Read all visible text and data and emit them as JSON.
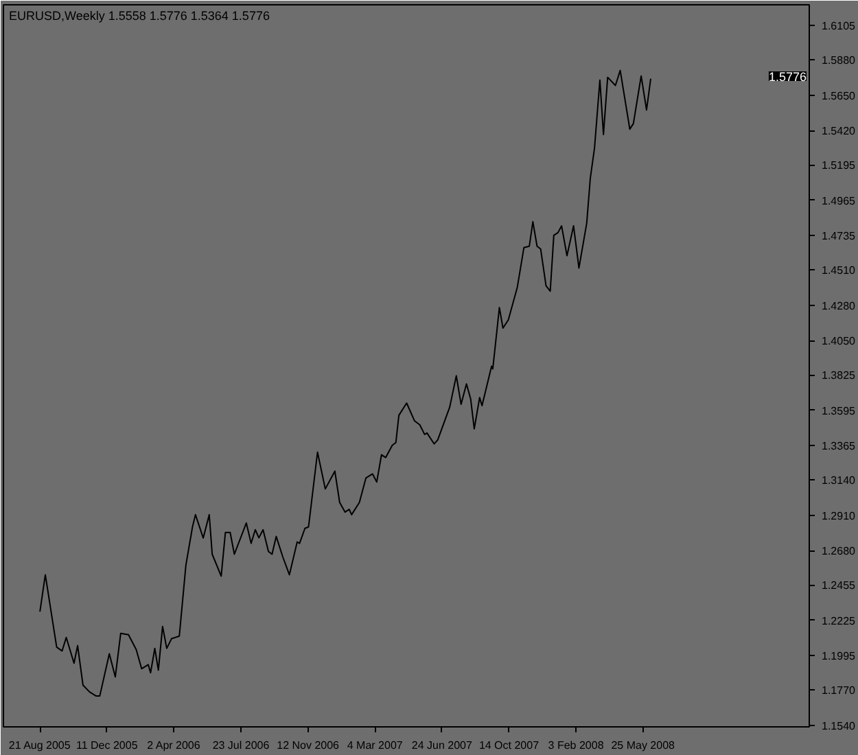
{
  "chart_data": {
    "type": "line",
    "title": "EURUSD,Weekly  1.5558 1.5776 1.5364 1.5776",
    "x": [
      "2005-08-21",
      "2005-08-30",
      "2005-09-18",
      "2005-09-27",
      "2005-10-04",
      "2005-10-17",
      "2005-10-23",
      "2005-11-01",
      "2005-11-12",
      "2005-11-23",
      "2005-11-29",
      "2005-12-15",
      "2005-12-25",
      "2006-01-03",
      "2006-01-16",
      "2006-01-29",
      "2006-02-07",
      "2006-02-18",
      "2006-02-22",
      "2006-03-01",
      "2006-03-07",
      "2006-03-14",
      "2006-03-21",
      "2006-03-29",
      "2006-04-11",
      "2006-04-22",
      "2006-05-03",
      "2006-05-08",
      "2006-05-21",
      "2006-05-31",
      "2006-06-05",
      "2006-06-20",
      "2006-06-27",
      "2006-07-05",
      "2006-07-12",
      "2006-08-01",
      "2006-08-09",
      "2006-08-16",
      "2006-08-22",
      "2006-08-29",
      "2006-09-07",
      "2006-09-13",
      "2006-09-20",
      "2006-10-01",
      "2006-10-12",
      "2006-10-25",
      "2006-10-29",
      "2006-11-07",
      "2006-11-13",
      "2006-11-28",
      "2006-12-11",
      "2006-12-27",
      "2007-01-04",
      "2007-01-13",
      "2007-01-20",
      "2007-01-24",
      "2007-02-06",
      "2007-02-17",
      "2007-02-28",
      "2007-03-07",
      "2007-03-15",
      "2007-03-22",
      "2007-04-02",
      "2007-04-08",
      "2007-04-13",
      "2007-04-26",
      "2007-05-09",
      "2007-05-18",
      "2007-05-26",
      "2007-05-30",
      "2007-06-11",
      "2007-06-17",
      "2007-07-07",
      "2007-07-18",
      "2007-07-26",
      "2007-08-04",
      "2007-08-11",
      "2007-08-17",
      "2007-08-26",
      "2007-08-30",
      "2007-09-15",
      "2007-09-17",
      "2007-09-28",
      "2007-10-04",
      "2007-10-13",
      "2007-10-28",
      "2007-11-08",
      "2007-11-17",
      "2007-11-23",
      "2007-11-30",
      "2007-12-06",
      "2007-12-15",
      "2007-12-22",
      "2007-12-28",
      "2008-01-04",
      "2008-01-10",
      "2008-01-19",
      "2008-01-30",
      "2008-02-08",
      "2008-02-21",
      "2008-02-27",
      "2008-03-05",
      "2008-03-14",
      "2008-03-20",
      "2008-03-27",
      "2008-04-09",
      "2008-04-17",
      "2008-05-03",
      "2008-05-09",
      "2008-05-22",
      "2008-05-31",
      "2008-06-07"
    ],
    "series": [
      {
        "color": "#000000",
        "values": [
          1.2282,
          1.2522,
          1.205,
          1.2025,
          1.2113,
          1.1945,
          1.206,
          1.1802,
          1.1758,
          1.1731,
          1.1731,
          1.2007,
          1.1856,
          1.214,
          1.2131,
          1.2034,
          1.1909,
          1.1936,
          1.1883,
          1.2042,
          1.19,
          1.2185,
          1.2042,
          1.2105,
          1.2122,
          1.2585,
          1.2834,
          1.2914,
          1.2762,
          1.2914,
          1.2656,
          1.2513,
          1.2798,
          1.2798,
          1.2656,
          1.286,
          1.2727,
          1.2816,
          1.2763,
          1.2816,
          1.2674,
          1.2656,
          1.2772,
          1.2638,
          1.2522,
          1.2736,
          1.2727,
          1.2825,
          1.2834,
          1.3322,
          1.3082,
          1.3198,
          1.2994,
          1.2931,
          1.2949,
          1.2914,
          1.2994,
          1.3154,
          1.318,
          1.3127,
          1.3305,
          1.3287,
          1.3367,
          1.3385,
          1.3562,
          1.3642,
          1.3527,
          1.35,
          1.3438,
          1.3447,
          1.3376,
          1.3402,
          1.3616,
          1.382,
          1.3634,
          1.3767,
          1.3669,
          1.3474,
          1.3678,
          1.3625,
          1.3883,
          1.3865,
          1.4265,
          1.4131,
          1.4185,
          1.4398,
          1.4656,
          1.4665,
          1.4825,
          1.4665,
          1.4647,
          1.4407,
          1.4372,
          1.4736,
          1.4754,
          1.4798,
          1.4603,
          1.4798,
          1.4523,
          1.4816,
          1.5109,
          1.5305,
          1.5749,
          1.5394,
          1.5767,
          1.5714,
          1.5812,
          1.5429,
          1.5465,
          1.5776,
          1.5554,
          1.5758
        ]
      }
    ],
    "xlim": [
      "2005-06-21",
      "2009-02-27"
    ],
    "xticks": [
      {
        "value": "2005-08-21",
        "label": "21 Aug 2005"
      },
      {
        "value": "2005-12-11",
        "label": "11 Dec 2005"
      },
      {
        "value": "2006-04-02",
        "label": "2 Apr 2006"
      },
      {
        "value": "2006-07-23",
        "label": "23 Jul 2006"
      },
      {
        "value": "2006-11-12",
        "label": "12 Nov 2006"
      },
      {
        "value": "2007-03-04",
        "label": "4 Mar 2007"
      },
      {
        "value": "2007-06-24",
        "label": "24 Jun 2007"
      },
      {
        "value": "2007-10-14",
        "label": "14 Oct 2007"
      },
      {
        "value": "2008-02-03",
        "label": "3 Feb 2008"
      },
      {
        "value": "2008-05-25",
        "label": "25 May 2008"
      }
    ],
    "ylim": [
      1.153,
      1.624
    ],
    "yticks": [
      {
        "value": 1.154,
        "label": "1.1540"
      },
      {
        "value": 1.177,
        "label": "1.1770"
      },
      {
        "value": 1.1995,
        "label": "1.1995"
      },
      {
        "value": 1.2225,
        "label": "1.2225"
      },
      {
        "value": 1.2455,
        "label": "1.2455"
      },
      {
        "value": 1.268,
        "label": "1.2680"
      },
      {
        "value": 1.291,
        "label": "1.2910"
      },
      {
        "value": 1.314,
        "label": "1.3140"
      },
      {
        "value": 1.3365,
        "label": "1.3365"
      },
      {
        "value": 1.3595,
        "label": "1.3595"
      },
      {
        "value": 1.3825,
        "label": "1.3825"
      },
      {
        "value": 1.405,
        "label": "1.4050"
      },
      {
        "value": 1.428,
        "label": "1.4280"
      },
      {
        "value": 1.451,
        "label": "1.4510"
      },
      {
        "value": 1.4735,
        "label": "1.4735"
      },
      {
        "value": 1.4965,
        "label": "1.4965"
      },
      {
        "value": 1.5195,
        "label": "1.5195"
      },
      {
        "value": 1.542,
        "label": "1.5420"
      },
      {
        "value": 1.565,
        "label": "1.5650"
      },
      {
        "value": 1.588,
        "label": "1.5880"
      },
      {
        "value": 1.6105,
        "label": "1.6105"
      }
    ],
    "annotations": [
      "1.5776"
    ],
    "grid": false,
    "marker": "none",
    "line_style": "solid"
  }
}
